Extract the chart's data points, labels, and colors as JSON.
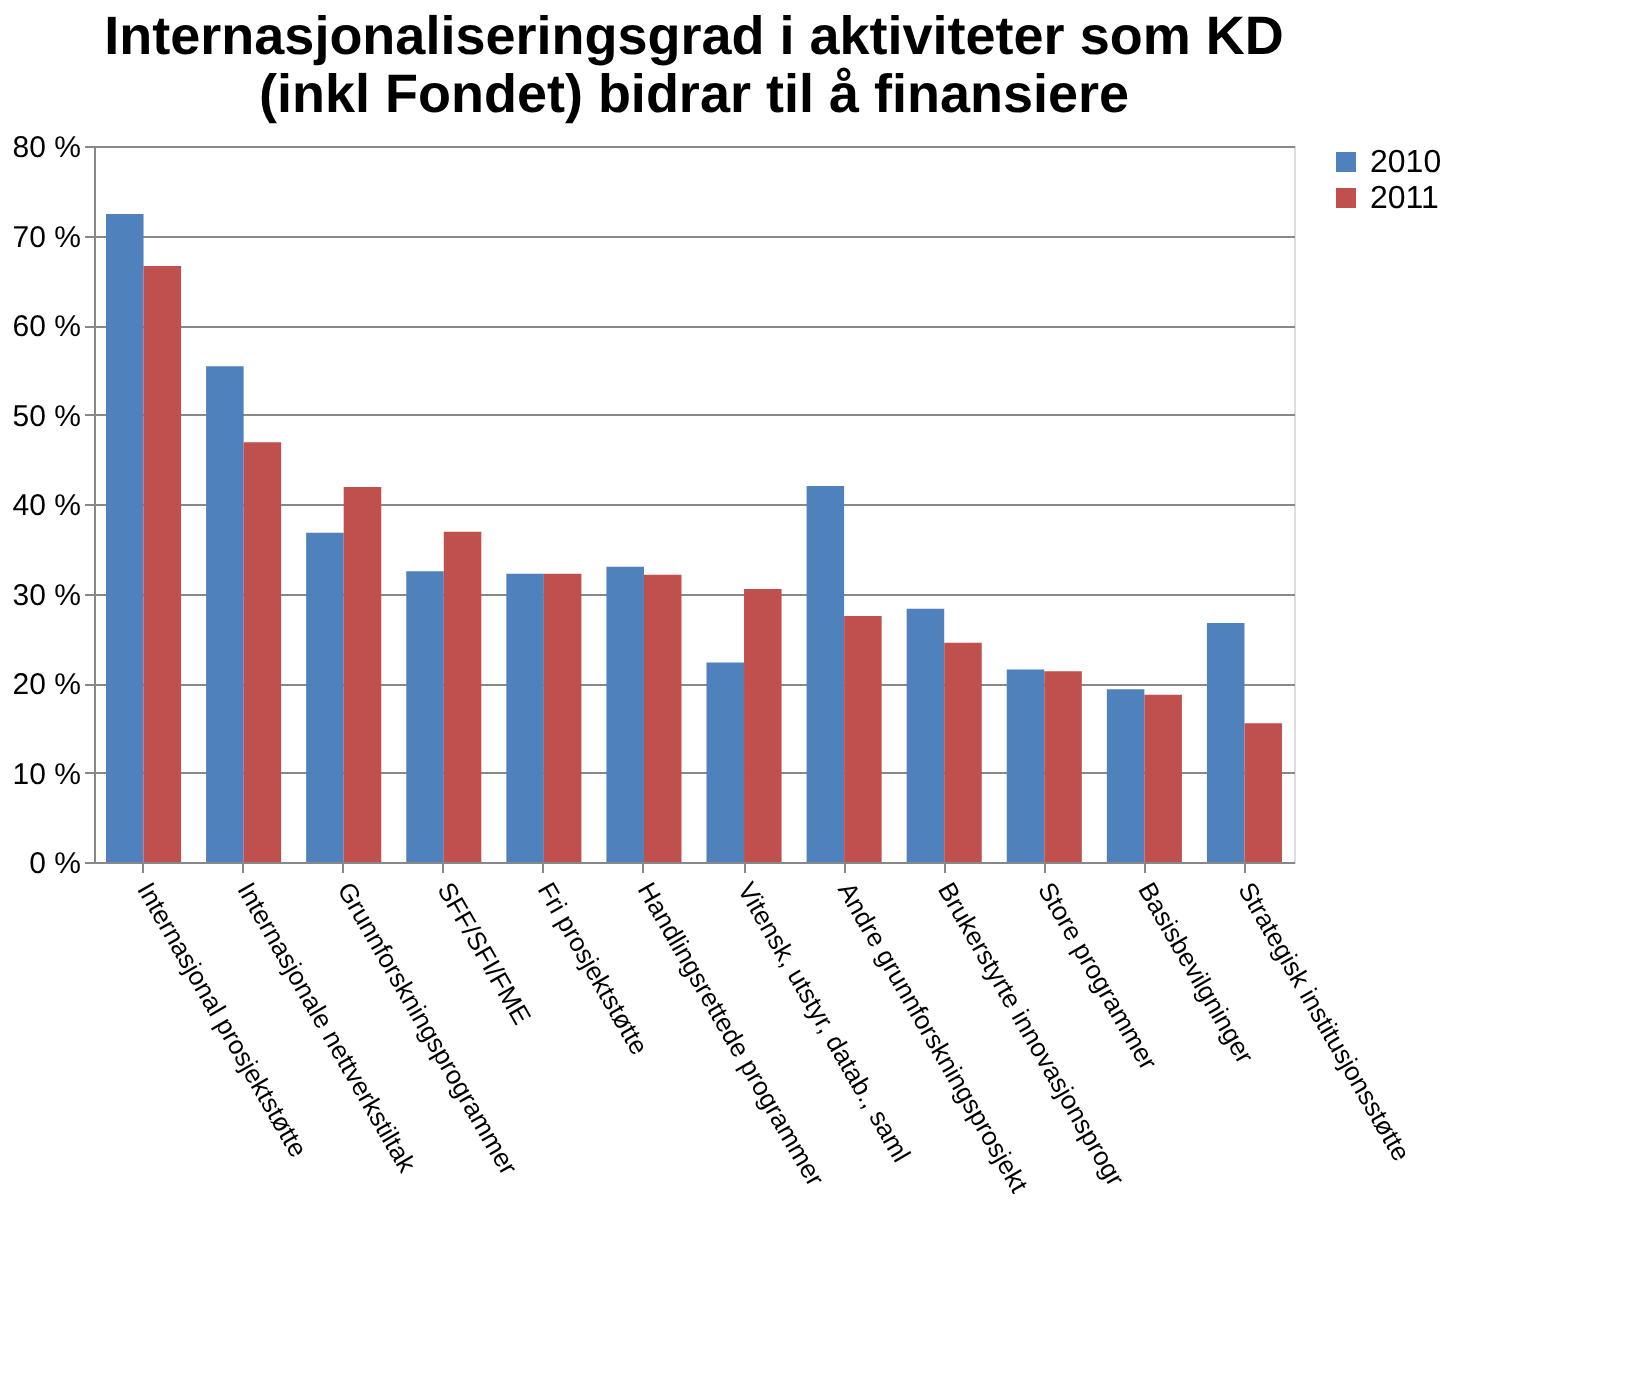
{
  "chart_data": {
    "type": "bar",
    "title": "Internasjonaliseringsgrad i aktiviteter som KD (inkl Fondet) bidrar til å finansiere",
    "categories": [
      "Internasjonal prosjektstøtte",
      "Internasjonale nettverkstiltak",
      "Grunnforskningsprogrammer",
      "SFF/SFI/FME",
      "Fri prosjektstøtte",
      "Handlingsrettede programmer",
      "Vitensk, utstyr, datab., saml",
      "Andre grunnforskningsprosjekt",
      "Brukerstyrte innovasjonsprogr",
      "Store programmer",
      "Basisbevilgninger",
      "Strategisk institusjonsstøtte"
    ],
    "series": [
      {
        "name": "2010",
        "color": "#4f81bd",
        "values": [
          72.4,
          55.4,
          36.8,
          32.5,
          32.2,
          33.0,
          22.3,
          42.0,
          28.3,
          21.5,
          19.3,
          26.7
        ]
      },
      {
        "name": "2011",
        "color": "#c0504d",
        "values": [
          66.6,
          46.9,
          41.9,
          36.9,
          32.2,
          32.1,
          30.5,
          27.5,
          24.5,
          21.3,
          18.7,
          15.5
        ]
      }
    ],
    "ylim": [
      0,
      80
    ],
    "yticks": [
      {
        "value": 0,
        "label": "0 %"
      },
      {
        "value": 10,
        "label": "10 %"
      },
      {
        "value": 20,
        "label": "20 %"
      },
      {
        "value": 30,
        "label": "30 %"
      },
      {
        "value": 40,
        "label": "40 %"
      },
      {
        "value": 50,
        "label": "50 %"
      },
      {
        "value": 60,
        "label": "60 %"
      },
      {
        "value": 70,
        "label": "70 %"
      },
      {
        "value": 80,
        "label": "80 %"
      }
    ],
    "grid": "y",
    "legend": "right"
  }
}
